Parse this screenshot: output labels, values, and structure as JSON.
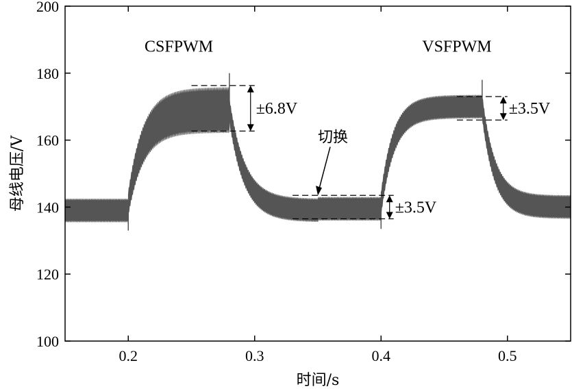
{
  "chart_data": {
    "type": "line",
    "xlabel": "时间/s",
    "ylabel": "母线电压/V",
    "xlim": [
      0.15,
      0.55
    ],
    "ylim": [
      100,
      200
    ],
    "xticks": [
      0.2,
      0.3,
      0.4,
      0.5
    ],
    "yticks": [
      100,
      120,
      140,
      160,
      180,
      200
    ],
    "xtick_labels": [
      "0.2",
      "0.3",
      "0.4",
      "0.5"
    ],
    "ytick_labels": [
      "100",
      "120",
      "140",
      "160",
      "180",
      "200"
    ],
    "grid": false,
    "series": [
      {
        "color": "#555555",
        "segments": [
          {
            "x0": 0.15,
            "x1": 0.2,
            "center": 139,
            "ripple": 3.5
          },
          {
            "x0": 0.2,
            "x1": 0.28,
            "kind": "rise",
            "from": 141,
            "to": 169,
            "ripple_from": 3.5,
            "ripple_to": 6.8,
            "tau": 0.012
          },
          {
            "x0": 0.28,
            "x1": 0.35,
            "kind": "fall",
            "from": 169,
            "to": 139,
            "ripple": 3.5,
            "tau": 0.012
          },
          {
            "x0": 0.35,
            "x1": 0.4,
            "center": 139.5,
            "ripple": 3.5
          },
          {
            "x0": 0.4,
            "x1": 0.48,
            "kind": "rise",
            "from": 141,
            "to": 170,
            "ripple": 3.5,
            "tau": 0.01
          },
          {
            "x0": 0.48,
            "x1": 0.55,
            "kind": "fall",
            "from": 170,
            "to": 140,
            "ripple": 3.5,
            "tau": 0.01
          }
        ]
      }
    ],
    "annotations": [
      {
        "text": "CSFPWM",
        "x": 0.24,
        "y": 188
      },
      {
        "text": "VSFPWM",
        "x": 0.46,
        "y": 188
      },
      {
        "text": "±6.8V",
        "x": 0.29,
        "y": 169.5,
        "band": [
          162.7,
          176.3
        ],
        "band_x": [
          0.25,
          0.3
        ]
      },
      {
        "text": "±3.5V",
        "x": 0.4,
        "y": 140,
        "band": [
          136.5,
          143.5
        ],
        "band_x": [
          0.33,
          0.41
        ]
      },
      {
        "text": "±3.5V",
        "x": 0.5,
        "y": 169.5,
        "band": [
          166,
          173
        ],
        "band_x": [
          0.46,
          0.5
        ]
      },
      {
        "text": "切换",
        "x": 0.35,
        "y": 161
      }
    ]
  }
}
